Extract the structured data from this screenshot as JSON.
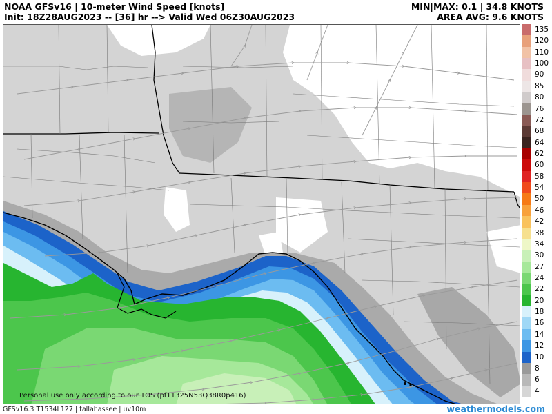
{
  "header": {
    "title": "NOAA GFSv16 | 10-meter Wind Speed [knots]",
    "init": "Init: 18Z28AUG2023 -- [36] hr --> Valid Wed 06Z30AUG2023",
    "minmax": "MIN|MAX: 0.1 | 34.8 KNOTS",
    "area_avg": "AREA AVG: 9.6 KNOTS"
  },
  "legend": {
    "levels": [
      {
        "label": "135",
        "color": "#c96b6b"
      },
      {
        "label": "120",
        "color": "#e8a07a"
      },
      {
        "label": "110",
        "color": "#f1c2a6"
      },
      {
        "label": "100",
        "color": "#e7c0c3"
      },
      {
        "label": "90",
        "color": "#f0dcdc"
      },
      {
        "label": "85",
        "color": "#ede6e6"
      },
      {
        "label": "80",
        "color": "#d0cbcb"
      },
      {
        "label": "76",
        "color": "#9c9590"
      },
      {
        "label": "72",
        "color": "#8a5a55"
      },
      {
        "label": "68",
        "color": "#5c3a35"
      },
      {
        "label": "64",
        "color": "#3a2420"
      },
      {
        "label": "62",
        "color": "#a80000"
      },
      {
        "label": "60",
        "color": "#cc0a0a"
      },
      {
        "label": "58",
        "color": "#e02323"
      },
      {
        "label": "54",
        "color": "#f04a1c"
      },
      {
        "label": "50",
        "color": "#f67a16"
      },
      {
        "label": "46",
        "color": "#f8a13b"
      },
      {
        "label": "42",
        "color": "#f9c25d"
      },
      {
        "label": "38",
        "color": "#f6e08f"
      },
      {
        "label": "34",
        "color": "#eef7c7"
      },
      {
        "label": "30",
        "color": "#c8f0b8"
      },
      {
        "label": "27",
        "color": "#a6e89a"
      },
      {
        "label": "24",
        "color": "#7ad873"
      },
      {
        "label": "22",
        "color": "#4cc64c"
      },
      {
        "label": "20",
        "color": "#27b530"
      },
      {
        "label": "18",
        "color": "#d7f1fb"
      },
      {
        "label": "16",
        "color": "#9fd8f6"
      },
      {
        "label": "14",
        "color": "#6cbcf1"
      },
      {
        "label": "12",
        "color": "#3c96e4"
      },
      {
        "label": "10",
        "color": "#1c63c9"
      },
      {
        "label": "8",
        "color": "#9a9a9a"
      },
      {
        "label": "6",
        "color": "#b8b8b8"
      },
      {
        "label": "4",
        "color": "#d6d6d6"
      }
    ]
  },
  "tos": "Personal use only according to our TOS (pf11325N53Q38R0p416)",
  "footer": {
    "left": "GFSv16.3 T1534L127 | tallahassee | uv10m",
    "right": "weathermodels.com"
  }
}
